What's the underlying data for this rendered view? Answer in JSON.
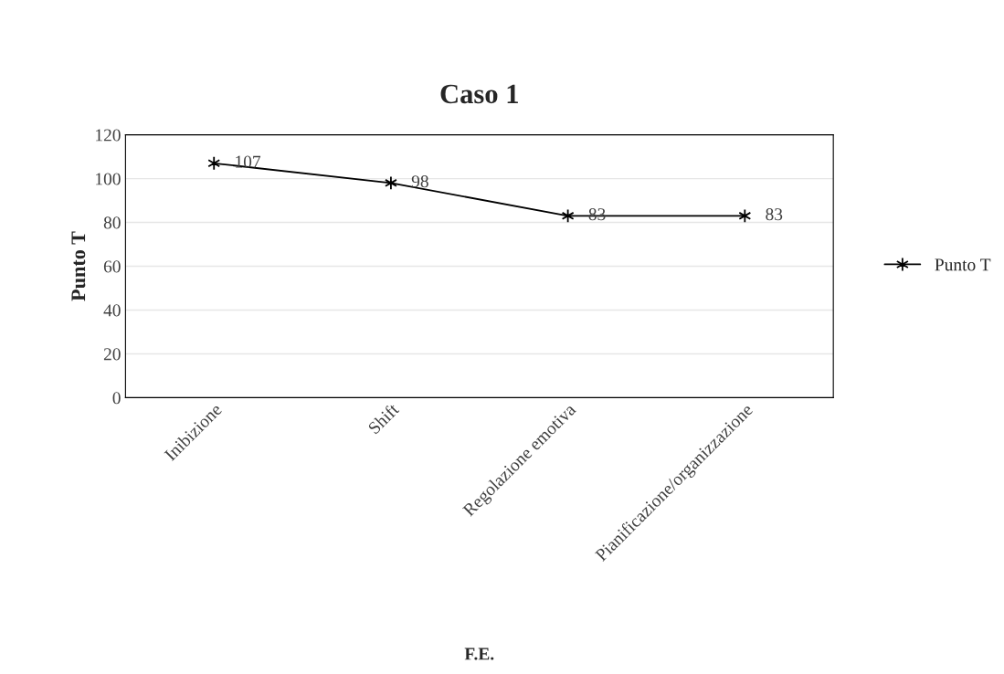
{
  "chart_data": {
    "type": "line",
    "title": "Caso 1",
    "xlabel": "F.E.",
    "ylabel": "Punto T",
    "categories": [
      "Inibizione",
      "Shift",
      "Regolazione emotiva",
      "Pianificazione/organizzazione"
    ],
    "series": [
      {
        "name": "Punto T",
        "color": "#000000",
        "values": [
          107,
          98,
          83,
          83
        ]
      }
    ],
    "ylim": [
      0,
      120
    ],
    "yticks": [
      0,
      20,
      40,
      60,
      80,
      100,
      120
    ],
    "grid": "y",
    "legend": "right",
    "marker": "cross",
    "line_style": "solid",
    "data_labels": true
  }
}
